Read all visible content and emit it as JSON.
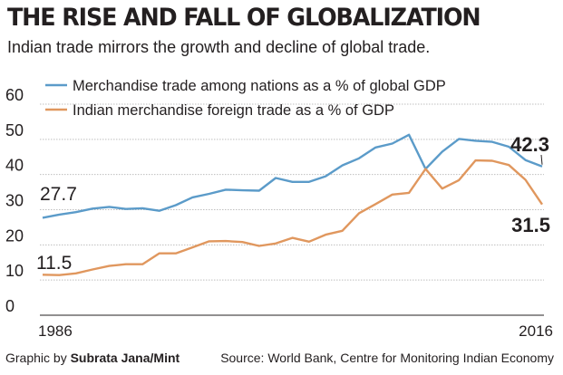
{
  "header": {
    "title": "THE RISE AND FALL OF GLOBALIZATION",
    "subtitle": "Indian trade mirrors the growth and decline of global trade."
  },
  "footer": {
    "credit_prefix": "Graphic by ",
    "credit_author": "Subrata Jana/Mint",
    "source": "Source: World Bank, Centre for Monitoring Indian Economy"
  },
  "colors": {
    "global": "#5b9bc9",
    "india": "#e0975e",
    "grid": "#bfbfbf",
    "text": "#231f20"
  },
  "chart_data": {
    "type": "line",
    "title": "THE RISE AND FALL OF GLOBALIZATION",
    "xlabel": "",
    "ylabel": "",
    "x": [
      1986,
      1987,
      1988,
      1989,
      1990,
      1991,
      1992,
      1993,
      1994,
      1995,
      1996,
      1997,
      1998,
      1999,
      2000,
      2001,
      2002,
      2003,
      2004,
      2005,
      2006,
      2007,
      2008,
      2009,
      2010,
      2011,
      2012,
      2013,
      2014,
      2015,
      2016
    ],
    "x_tick_labels": [
      "1986",
      "2016"
    ],
    "ylim": [
      0,
      60
    ],
    "y_ticks": [
      "0",
      "10",
      "20",
      "30",
      "40",
      "50",
      "60"
    ],
    "grid": true,
    "legend_position": "top-left",
    "series": [
      {
        "name": "Merchandise trade among nations as a % of global GDP",
        "values": [
          27.7,
          28.6,
          29.3,
          30.3,
          30.8,
          30.2,
          30.4,
          29.7,
          31.3,
          33.5,
          34.5,
          35.7,
          35.5,
          35.4,
          39.0,
          37.9,
          37.9,
          39.5,
          42.6,
          44.6,
          47.7,
          48.8,
          51.3,
          41.6,
          46.5,
          50.1,
          49.6,
          49.3,
          47.9,
          44.1,
          42.3
        ]
      },
      {
        "name": "Indian merchandise foreign trade as a % of GDP",
        "values": [
          11.5,
          11.4,
          11.9,
          13.0,
          14.0,
          14.5,
          14.5,
          17.6,
          17.6,
          19.3,
          21.0,
          21.1,
          20.8,
          19.7,
          20.4,
          22.0,
          20.9,
          22.9,
          24.0,
          29.0,
          31.6,
          34.3,
          34.8,
          41.6,
          36.0,
          38.4,
          44.0,
          43.9,
          42.7,
          38.5,
          31.5
        ]
      }
    ],
    "annotations": [
      {
        "text": "27.7",
        "series": 0,
        "x": 1986
      },
      {
        "text": "11.5",
        "series": 1,
        "x": 1986
      },
      {
        "text": "42.3",
        "series": 0,
        "x": 2016
      },
      {
        "text": "31.5",
        "series": 1,
        "x": 2016
      }
    ]
  }
}
